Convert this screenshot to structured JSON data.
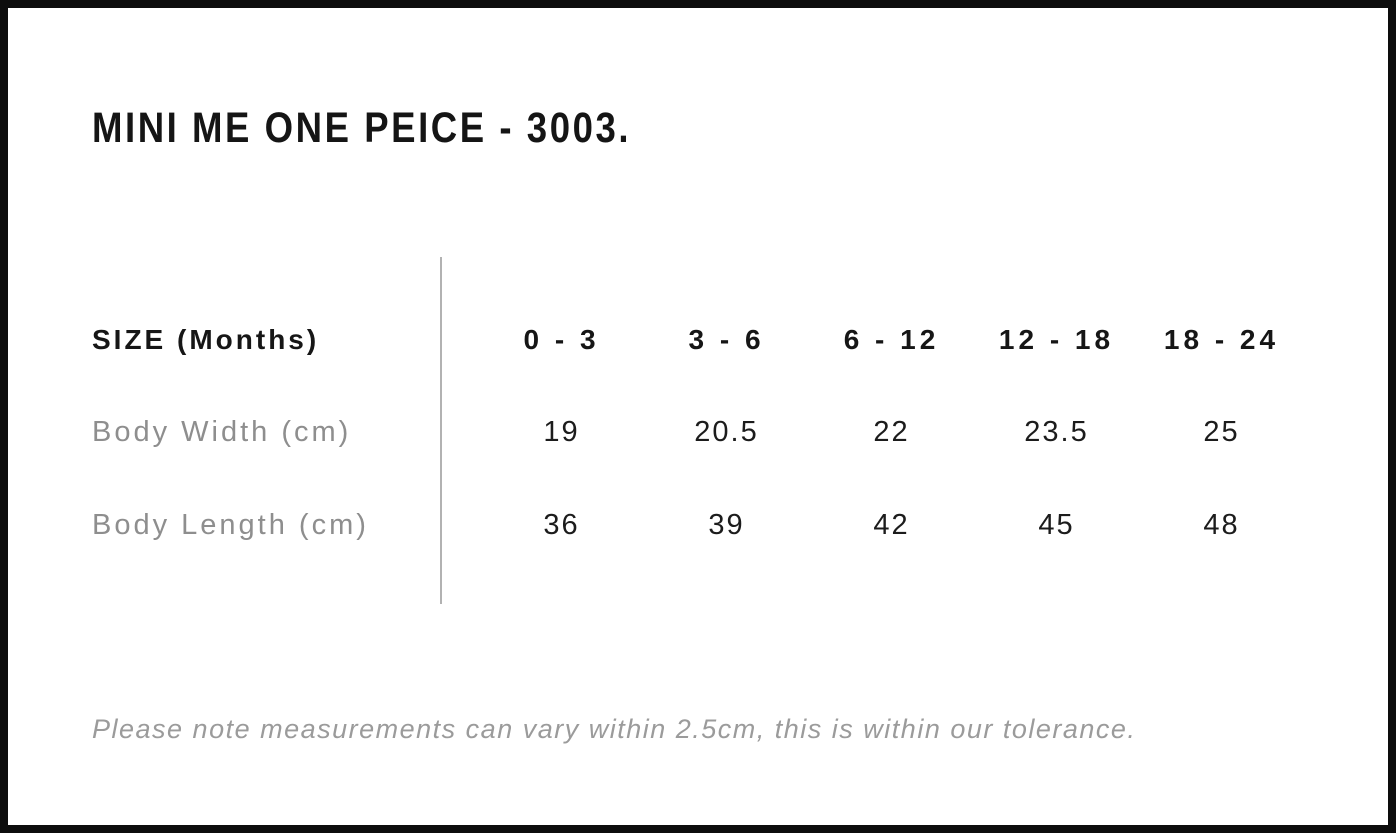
{
  "page": {
    "title": "MINI ME ONE PEICE - 3003.",
    "note": "Please note measurements can vary within 2.5cm, this is within our tolerance."
  },
  "size_chart": {
    "header_label": "SIZE (Months)",
    "columns": [
      "0 - 3",
      "3 - 6",
      "6 - 12",
      "12 - 18",
      "18 - 24"
    ],
    "rows": [
      {
        "label": "Body Width (cm)",
        "values": [
          "19",
          "20.5",
          "22",
          "23.5",
          "25"
        ]
      },
      {
        "label": "Body Length (cm)",
        "values": [
          "36",
          "39",
          "42",
          "45",
          "48"
        ]
      }
    ]
  },
  "colors": {
    "background": "#ffffff",
    "frame_border": "#0d0d0d",
    "text_primary": "#161616",
    "text_secondary": "#8e8e8e",
    "note_text": "#9b9b9b",
    "divider": "#b2b2b2"
  },
  "chart_data": {
    "type": "table",
    "title": "MINI ME ONE PEICE - 3003.",
    "columns": [
      "SIZE (Months)",
      "0 - 3",
      "3 - 6",
      "6 - 12",
      "12 - 18",
      "18 - 24"
    ],
    "rows": [
      [
        "Body Width (cm)",
        19,
        20.5,
        22,
        23.5,
        25
      ],
      [
        "Body Length (cm)",
        36,
        39,
        42,
        45,
        48
      ]
    ],
    "footnote": "Please note measurements can vary within 2.5cm, this is within our tolerance.",
    "layout": {
      "grid": "off",
      "divider": "vertical line between label column and data columns"
    }
  }
}
